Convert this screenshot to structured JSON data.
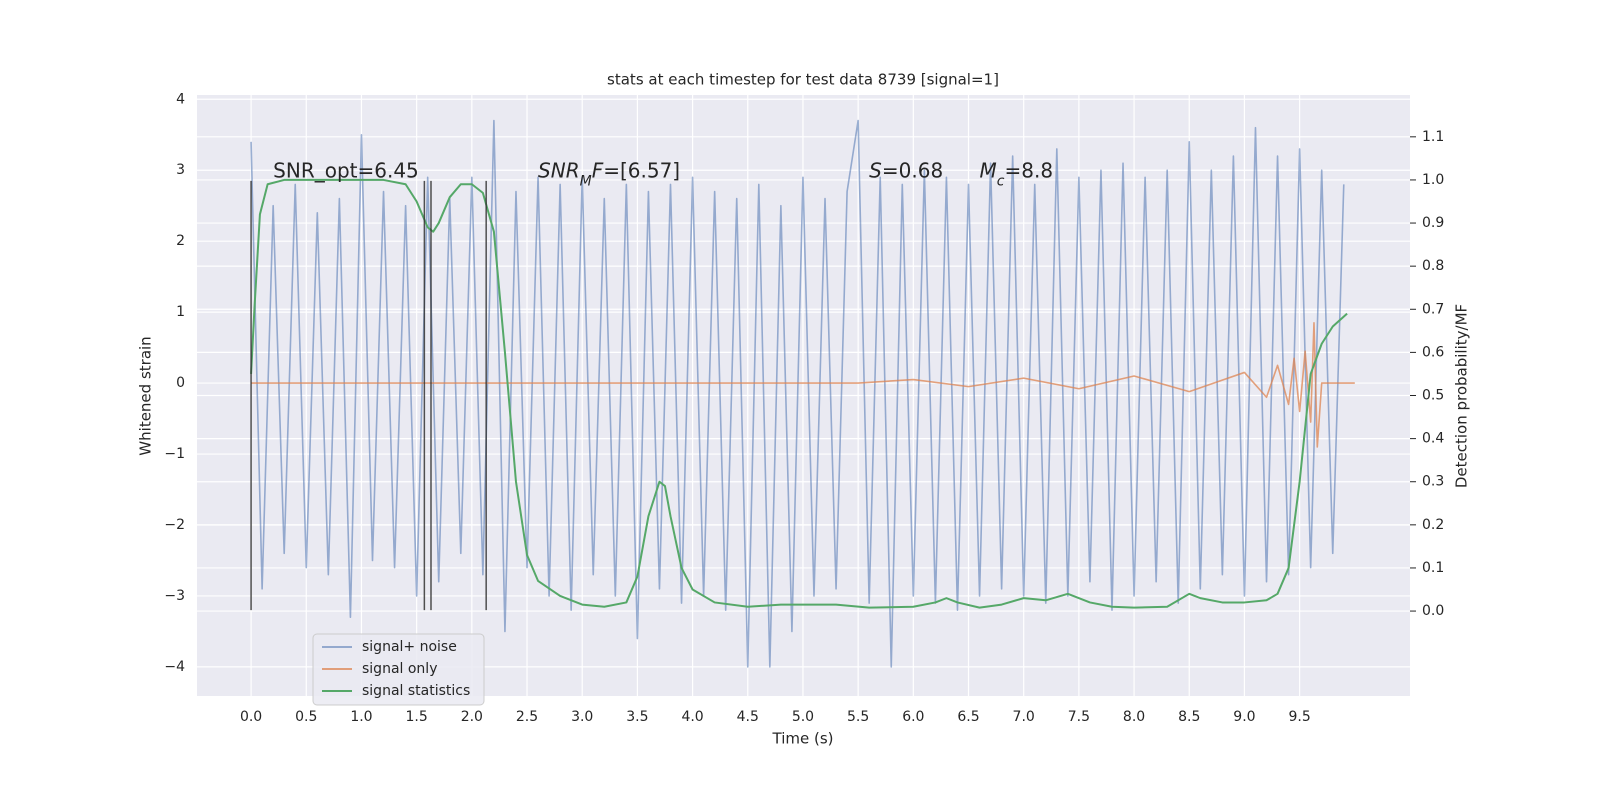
{
  "chart_data": {
    "type": "line",
    "title": "stats at each timestep for test data 8739 [signal=1]",
    "xlabel": "Time (s)",
    "ylabel": "Whitened strain",
    "y2label": "Detection probability/MF",
    "xlim": [
      -0.49,
      10.5
    ],
    "ylim": [
      -4.41,
      4.06
    ],
    "y2lim": [
      -0.197,
      1.197
    ],
    "xticks": [
      {
        "value": 0,
        "label": "0.0"
      },
      0.5,
      {
        "value": 1,
        "label": "1.0"
      },
      1.5,
      {
        "value": 2,
        "label": "2.0"
      },
      2.5,
      {
        "value": 3,
        "label": "3.0"
      },
      3.5,
      {
        "value": 4,
        "label": "4.0"
      },
      4.5,
      {
        "value": 5,
        "label": "5.0"
      },
      5.5,
      {
        "value": 6,
        "label": "6.0"
      },
      6.5,
      {
        "value": 7,
        "label": "7.0"
      },
      7.5,
      {
        "value": 8,
        "label": "8.0"
      },
      8.5,
      {
        "value": 9,
        "label": "9.0"
      },
      9.5
    ],
    "yticks": [
      {
        "value": -4,
        "label": "−4"
      },
      {
        "value": -3,
        "label": "−3"
      },
      {
        "value": -2,
        "label": "−2"
      },
      {
        "value": -1,
        "label": "−1"
      },
      0,
      1,
      2,
      3,
      4
    ],
    "y2ticks": [
      {
        "value": 0,
        "label": "0.0"
      },
      0.1,
      0.2,
      0.3,
      0.4,
      0.5,
      0.6,
      0.7,
      0.8,
      0.9,
      {
        "value": 1,
        "label": "1.0"
      },
      1.1
    ],
    "grid": true,
    "background": "#eaeaf2",
    "legend": "lower left",
    "series": [
      {
        "name": "signal+ noise",
        "color": "#4c72b0",
        "opacity": 0.55,
        "x": [
          0,
          0.1,
          0.2,
          0.3,
          0.4,
          0.5,
          0.6,
          0.7,
          0.8,
          0.9,
          1,
          1.1,
          1.2,
          1.3,
          1.4,
          1.5,
          1.6,
          1.7,
          1.8,
          1.9,
          2,
          2.1,
          2.2,
          2.3,
          2.4,
          2.5,
          2.6,
          2.7,
          2.8,
          2.9,
          3,
          3.1,
          3.2,
          3.3,
          3.4,
          3.5,
          3.6,
          3.7,
          3.8,
          3.9,
          4,
          4.1,
          4.2,
          4.3,
          4.4,
          4.5,
          4.6,
          4.7,
          4.8,
          4.9,
          5,
          5.1,
          5.2,
          5.3,
          5.4,
          5.5,
          5.6,
          5.7,
          5.8,
          5.9,
          6,
          6.1,
          6.2,
          6.3,
          6.4,
          6.5,
          6.6,
          6.7,
          6.8,
          6.9,
          7,
          7.1,
          7.2,
          7.3,
          7.4,
          7.5,
          7.6,
          7.7,
          7.8,
          7.9,
          8,
          8.1,
          8.2,
          8.3,
          8.4,
          8.5,
          8.6,
          8.7,
          8.8,
          8.9,
          9,
          9.1,
          9.2,
          9.3,
          9.4,
          9.5,
          9.6,
          9.7,
          9.8,
          9.9
        ],
        "values": [
          3.4,
          -2.9,
          2.5,
          -2.4,
          2.8,
          -2.6,
          2.4,
          -2.7,
          2.6,
          -3.3,
          3.5,
          -2.5,
          2.7,
          -2.6,
          2.5,
          -3.0,
          2.9,
          -2.8,
          2.6,
          -2.4,
          2.9,
          -2.7,
          3.7,
          -3.5,
          2.7,
          -2.6,
          2.9,
          -3.0,
          2.8,
          -3.2,
          2.9,
          -2.7,
          2.6,
          -3.0,
          2.8,
          -3.6,
          2.7,
          -2.9,
          2.8,
          -3.1,
          2.9,
          -3.0,
          2.7,
          -3.2,
          2.6,
          -4.0,
          2.8,
          -4.0,
          2.5,
          -3.5,
          2.9,
          -3.0,
          2.6,
          -2.9,
          2.7,
          3.7,
          -3.1,
          2.9,
          -4.0,
          2.8,
          -3.0,
          3.0,
          -3.1,
          2.9,
          -3.2,
          2.8,
          -3.0,
          3.1,
          -2.9,
          3.2,
          -3.0,
          2.8,
          -3.1,
          3.3,
          -3.0,
          2.9,
          -2.8,
          3.0,
          -3.2,
          3.1,
          -3.0,
          2.9,
          -2.8,
          3.0,
          -3.1,
          3.4,
          -2.9,
          3.0,
          -2.7,
          3.2,
          -3.0,
          3.6,
          -2.8,
          3.2,
          -2.7,
          3.3,
          -2.6,
          3.0,
          -2.4,
          2.8
        ]
      },
      {
        "name": "signal only",
        "color": "#dd8452",
        "opacity": 0.75,
        "x": [
          0,
          5.5,
          6.0,
          6.5,
          7.0,
          7.5,
          8.0,
          8.5,
          9.0,
          9.2,
          9.3,
          9.4,
          9.45,
          9.5,
          9.55,
          9.6,
          9.63,
          9.66,
          9.7,
          10.0
        ],
        "values": [
          0,
          0,
          0.05,
          -0.05,
          0.07,
          -0.08,
          0.1,
          -0.12,
          0.15,
          -0.2,
          0.25,
          -0.3,
          0.35,
          -0.4,
          0.45,
          -0.55,
          0.85,
          -0.9,
          0,
          0
        ]
      },
      {
        "name": "signal statistics",
        "color": "#55a868",
        "opacity": 1,
        "axis": "y2",
        "x": [
          0,
          0.03,
          0.08,
          0.15,
          0.3,
          0.5,
          1.0,
          1.2,
          1.4,
          1.5,
          1.6,
          1.65,
          1.7,
          1.8,
          1.9,
          2.0,
          2.1,
          2.2,
          2.3,
          2.4,
          2.5,
          2.6,
          2.8,
          3.0,
          3.2,
          3.4,
          3.5,
          3.6,
          3.7,
          3.75,
          3.8,
          3.9,
          4.0,
          4.2,
          4.5,
          4.8,
          5.0,
          5.3,
          5.6,
          6.0,
          6.2,
          6.3,
          6.4,
          6.6,
          6.8,
          7.0,
          7.2,
          7.4,
          7.6,
          7.8,
          8.0,
          8.3,
          8.5,
          8.6,
          8.8,
          9.0,
          9.2,
          9.3,
          9.4,
          9.5,
          9.6,
          9.7,
          9.8,
          9.93
        ],
        "values": [
          0.55,
          0.7,
          0.92,
          0.99,
          1.0,
          1.0,
          1.0,
          1.0,
          0.99,
          0.95,
          0.89,
          0.88,
          0.9,
          0.96,
          0.99,
          0.99,
          0.97,
          0.88,
          0.6,
          0.3,
          0.13,
          0.07,
          0.035,
          0.015,
          0.01,
          0.02,
          0.08,
          0.22,
          0.3,
          0.29,
          0.22,
          0.1,
          0.05,
          0.02,
          0.01,
          0.015,
          0.015,
          0.015,
          0.008,
          0.01,
          0.02,
          0.03,
          0.02,
          0.008,
          0.015,
          0.03,
          0.025,
          0.04,
          0.02,
          0.01,
          0.008,
          0.01,
          0.04,
          0.03,
          0.02,
          0.02,
          0.025,
          0.04,
          0.1,
          0.3,
          0.55,
          0.62,
          0.66,
          0.69
        ]
      }
    ],
    "vlines": {
      "color": "#333333",
      "x": [
        0,
        1.57,
        1.63,
        2.13
      ],
      "ymin": -3.2,
      "ymax": 2.85
    },
    "annotations": [
      {
        "x": 0.2,
        "y": 2.9,
        "parts": [
          {
            "text": "SNR_opt=6.45",
            "style": "normal"
          }
        ]
      },
      {
        "x": 2.6,
        "y": 2.9,
        "parts": [
          {
            "text": "SNR",
            "style": "italic"
          },
          {
            "text": "M",
            "style": "sub"
          },
          {
            "text": "F",
            "style": "italic"
          },
          {
            "text": "=[6.57]",
            "style": "normal"
          }
        ]
      },
      {
        "x": 5.6,
        "y": 2.9,
        "parts": [
          {
            "text": "S",
            "style": "italic"
          },
          {
            "text": "=0.68",
            "style": "normal"
          }
        ]
      },
      {
        "x": 6.6,
        "y": 2.9,
        "parts": [
          {
            "text": "M",
            "style": "italic"
          },
          {
            "text": "c",
            "style": "sub"
          },
          {
            "text": "=8.8",
            "style": "normal"
          }
        ]
      }
    ]
  }
}
